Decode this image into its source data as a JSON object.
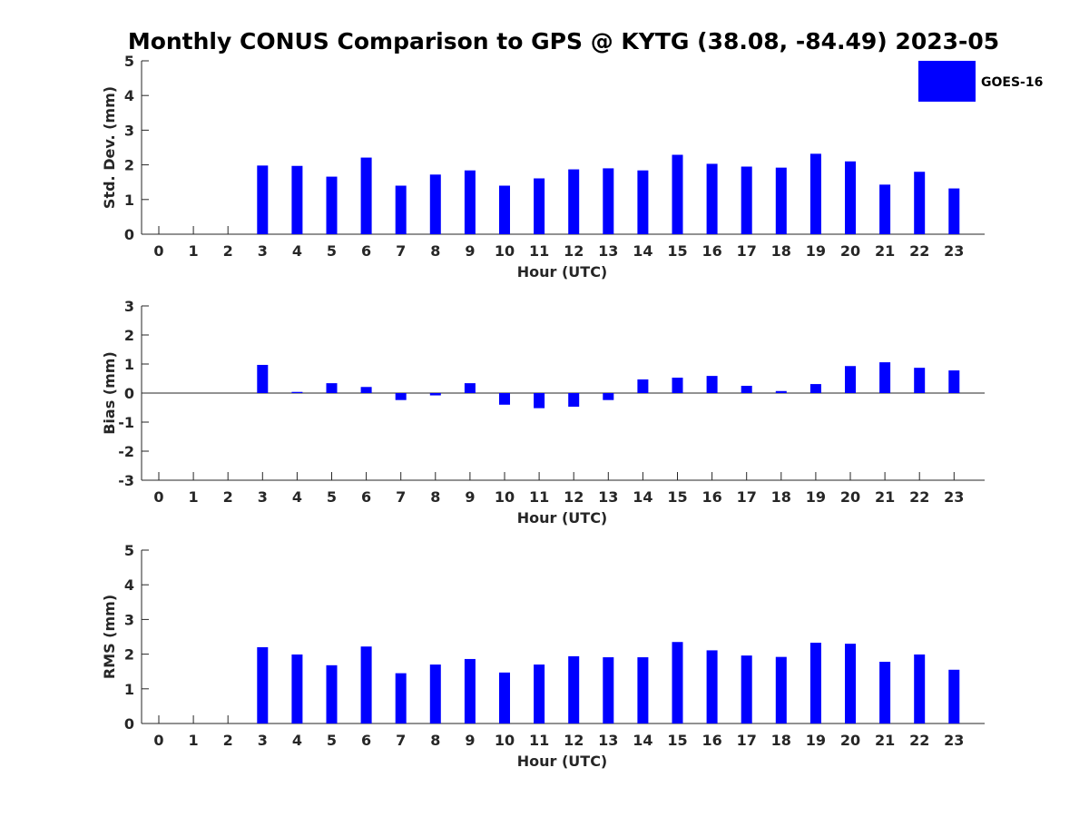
{
  "chart_data": {
    "type": "bar",
    "title": "Monthly CONUS Comparison to GPS @ KYTG (38.08, -84.49) 2023-05",
    "legend": {
      "entries": [
        "GOES-16"
      ],
      "placement": "top-right"
    },
    "series_color": "#0000ff",
    "panels": [
      {
        "name": "std-dev",
        "xlabel": "Hour (UTC)",
        "ylabel": "Std. Dev. (mm)",
        "ylim": [
          0,
          5
        ],
        "yticks": [
          0,
          1,
          2,
          3,
          4,
          5
        ],
        "xticks": [
          0,
          1,
          2,
          3,
          4,
          5,
          6,
          7,
          8,
          9,
          10,
          11,
          12,
          13,
          14,
          15,
          16,
          17,
          18,
          19,
          20,
          21,
          22,
          23
        ],
        "series": [
          {
            "name": "GOES-16",
            "values": [
              null,
              null,
              null,
              1.98,
              1.97,
              1.66,
              2.21,
              1.4,
              1.72,
              1.84,
              1.4,
              1.61,
              1.87,
              1.9,
              1.84,
              2.29,
              2.03,
              1.95,
              1.92,
              2.32,
              2.1,
              1.43,
              1.8,
              1.32
            ]
          }
        ]
      },
      {
        "name": "bias",
        "xlabel": "Hour (UTC)",
        "ylabel": "Bias (mm)",
        "ylim": [
          -3,
          3
        ],
        "yticks": [
          -3,
          -2,
          -1,
          0,
          1,
          2,
          3
        ],
        "xticks": [
          0,
          1,
          2,
          3,
          4,
          5,
          6,
          7,
          8,
          9,
          10,
          11,
          12,
          13,
          14,
          15,
          16,
          17,
          18,
          19,
          20,
          21,
          22,
          23
        ],
        "series": [
          {
            "name": "GOES-16",
            "values": [
              null,
              null,
              null,
              0.97,
              0.04,
              0.34,
              0.21,
              -0.24,
              -0.08,
              0.34,
              -0.4,
              -0.52,
              -0.47,
              -0.24,
              0.47,
              0.53,
              0.59,
              0.25,
              0.07,
              0.31,
              0.93,
              1.06,
              0.87,
              0.78
            ]
          }
        ]
      },
      {
        "name": "rms",
        "xlabel": "Hour (UTC)",
        "ylabel": "RMS (mm)",
        "ylim": [
          0,
          5
        ],
        "yticks": [
          0,
          1,
          2,
          3,
          4,
          5
        ],
        "xticks": [
          0,
          1,
          2,
          3,
          4,
          5,
          6,
          7,
          8,
          9,
          10,
          11,
          12,
          13,
          14,
          15,
          16,
          17,
          18,
          19,
          20,
          21,
          22,
          23
        ],
        "series": [
          {
            "name": "GOES-16",
            "values": [
              null,
              null,
              null,
              2.2,
              1.99,
              1.68,
              2.22,
              1.45,
              1.7,
              1.86,
              1.47,
              1.7,
              1.94,
              1.91,
              1.91,
              2.35,
              2.11,
              1.96,
              1.92,
              2.33,
              2.3,
              1.78,
              1.99,
              1.55
            ]
          }
        ]
      }
    ]
  }
}
